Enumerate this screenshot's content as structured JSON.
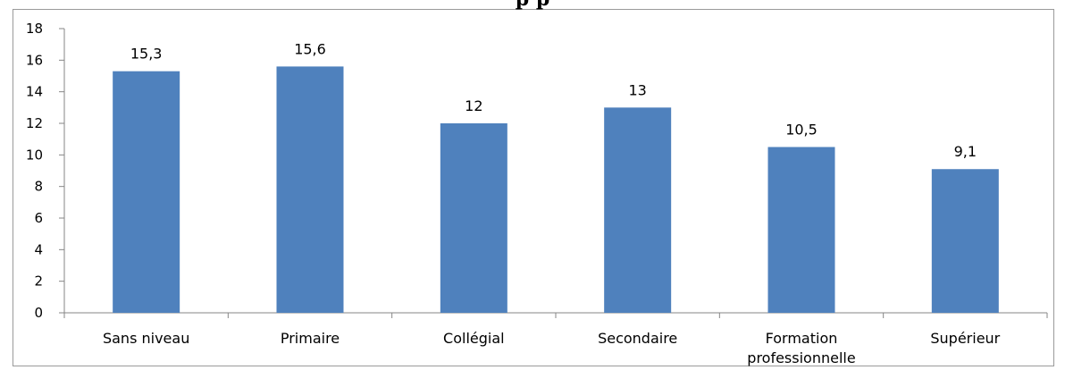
{
  "chart_data": {
    "type": "bar",
    "title": "",
    "partial_title_visible": "p                p",
    "categories": [
      "Sans niveau",
      "Primaire",
      "Collégial",
      "Secondaire",
      [
        "Formation",
        "professionnelle"
      ],
      "Supérieur"
    ],
    "values": [
      15.3,
      15.6,
      12,
      13,
      10.5,
      9.1
    ],
    "data_labels": [
      "15,3",
      "15,6",
      "12",
      "13",
      "10,5",
      "9,1"
    ],
    "yticks": [
      "0",
      "2",
      "4",
      "6",
      "8",
      "10",
      "12",
      "14",
      "16",
      "18"
    ],
    "ylim": [
      0,
      18
    ],
    "xlabel": "",
    "ylabel": "",
    "grid": false,
    "legend": "none",
    "bar_color": "#4f81bd",
    "axis_color": "#868686"
  }
}
